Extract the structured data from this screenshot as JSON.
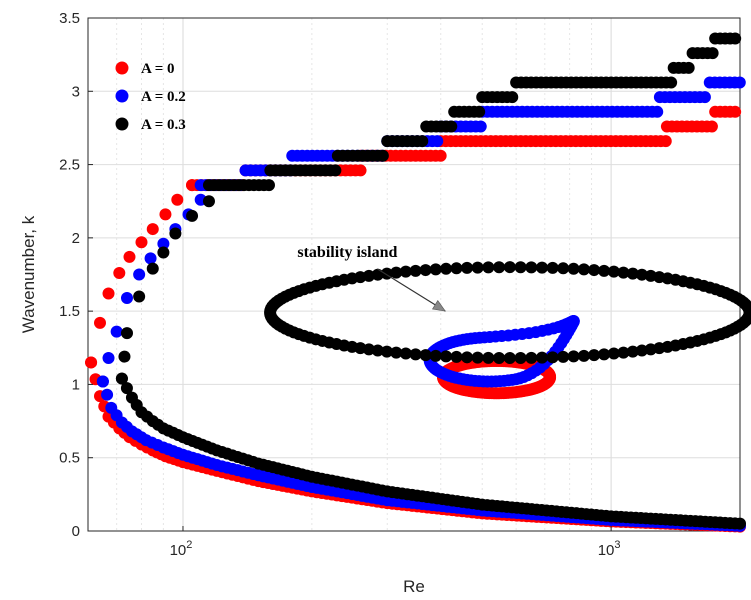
{
  "chart_data": {
    "type": "scatter",
    "xlabel": "Re",
    "ylabel": "Wavenumber, k",
    "xscale": "log",
    "xlim": [
      60,
      2000
    ],
    "ylim": [
      0,
      3.5
    ],
    "grid": true,
    "legend_position": "top-left",
    "x_ticks": [
      100,
      1000
    ],
    "x_tick_labels": [
      {
        "base": "10",
        "exp": "2"
      },
      {
        "base": "10",
        "exp": "3"
      }
    ],
    "y_ticks": [
      0,
      0.5,
      1,
      1.5,
      2,
      2.5,
      3,
      3.5
    ],
    "y_tick_labels": [
      "0",
      "0.5",
      "1",
      "1.5",
      "2",
      "2.5",
      "3",
      "3.5"
    ],
    "series": [
      {
        "name": "A = 0",
        "color": "#ff0000",
        "upper_branch": [
          [
            61,
            1.15
          ],
          [
            64,
            1.42
          ],
          [
            67,
            1.62
          ],
          [
            71,
            1.76
          ],
          [
            75,
            1.87
          ],
          [
            80,
            1.97
          ],
          [
            85,
            2.06
          ],
          [
            91,
            2.16
          ],
          [
            97,
            2.26
          ],
          [
            105,
            2.36
          ]
        ],
        "lower_branch": [
          [
            61,
            1.15
          ],
          [
            64,
            0.92
          ],
          [
            67,
            0.78
          ],
          [
            71,
            0.7
          ],
          [
            75,
            0.64
          ],
          [
            80,
            0.59
          ],
          [
            85,
            0.55
          ],
          [
            91,
            0.51
          ],
          [
            100,
            0.47
          ],
          [
            120,
            0.41
          ],
          [
            150,
            0.34
          ],
          [
            200,
            0.27
          ],
          [
            300,
            0.19
          ],
          [
            500,
            0.12
          ],
          [
            1000,
            0.065
          ],
          [
            2000,
            0.03
          ]
        ],
        "steps": [
          [
            105,
            140,
            2.36
          ],
          [
            140,
            260,
            2.46
          ],
          [
            260,
            400,
            2.56
          ],
          [
            400,
            1350,
            2.66
          ],
          [
            1350,
            1750,
            2.76
          ],
          [
            1750,
            2000,
            2.86
          ]
        ],
        "island": {
          "cx": 540,
          "cy": 1.05,
          "rx": 0.125,
          "ry": 0.11
        }
      },
      {
        "name": "A = 0.2",
        "color": "#0000ff",
        "upper_branch": [
          [
            65,
            1.02
          ],
          [
            67,
            1.18
          ],
          [
            70,
            1.36
          ],
          [
            74,
            1.59
          ],
          [
            79,
            1.75
          ],
          [
            84,
            1.86
          ],
          [
            90,
            1.96
          ],
          [
            96,
            2.06
          ],
          [
            103,
            2.16
          ],
          [
            110,
            2.26
          ]
        ],
        "lower_branch": [
          [
            65,
            1.02
          ],
          [
            68,
            0.84
          ],
          [
            72,
            0.74
          ],
          [
            76,
            0.68
          ],
          [
            82,
            0.62
          ],
          [
            90,
            0.57
          ],
          [
            100,
            0.52
          ],
          [
            120,
            0.45
          ],
          [
            150,
            0.38
          ],
          [
            200,
            0.3
          ],
          [
            300,
            0.21
          ],
          [
            500,
            0.14
          ],
          [
            1000,
            0.075
          ],
          [
            2000,
            0.035
          ]
        ],
        "steps": [
          [
            110,
            140,
            2.36
          ],
          [
            140,
            180,
            2.46
          ],
          [
            180,
            300,
            2.56
          ],
          [
            300,
            400,
            2.66
          ],
          [
            400,
            500,
            2.76
          ],
          [
            500,
            1300,
            2.86
          ],
          [
            1300,
            1700,
            2.96
          ],
          [
            1700,
            2000,
            3.06
          ]
        ],
        "island": {
          "tip": [
            840,
            1.47
          ],
          "cx": 520,
          "cy": 1.17,
          "rx": 0.14,
          "ry": 0.15
        }
      },
      {
        "name": "A = 0.3",
        "color": "#000000",
        "upper_branch": [
          [
            72,
            1.04
          ],
          [
            73,
            1.19
          ],
          [
            74,
            1.35
          ],
          [
            79,
            1.6
          ],
          [
            85,
            1.79
          ],
          [
            90,
            1.9
          ],
          [
            96,
            2.03
          ],
          [
            105,
            2.15
          ],
          [
            115,
            2.25
          ]
        ],
        "lower_branch": [
          [
            72,
            1.04
          ],
          [
            76,
            0.91
          ],
          [
            80,
            0.81
          ],
          [
            85,
            0.75
          ],
          [
            90,
            0.7
          ],
          [
            100,
            0.64
          ],
          [
            120,
            0.55
          ],
          [
            150,
            0.46
          ],
          [
            200,
            0.37
          ],
          [
            300,
            0.27
          ],
          [
            500,
            0.18
          ],
          [
            1000,
            0.1
          ],
          [
            2000,
            0.05
          ]
        ],
        "steps": [
          [
            115,
            160,
            2.36
          ],
          [
            160,
            230,
            2.46
          ],
          [
            230,
            300,
            2.56
          ],
          [
            300,
            370,
            2.66
          ],
          [
            370,
            430,
            2.76
          ],
          [
            430,
            500,
            2.86
          ],
          [
            500,
            600,
            2.96
          ],
          [
            600,
            1400,
            3.06
          ],
          [
            1400,
            1550,
            3.16
          ],
          [
            1550,
            1750,
            3.26
          ],
          [
            1750,
            2000,
            3.36
          ]
        ],
        "island": {
          "cx": 580,
          "cy": 1.49,
          "rx": 0.56,
          "ry": 0.31
        }
      }
    ],
    "annotations": [
      {
        "text": "stability island",
        "text_at": [
          185,
          1.87
        ],
        "arrow_to": [
          410,
          1.5
        ]
      }
    ]
  }
}
